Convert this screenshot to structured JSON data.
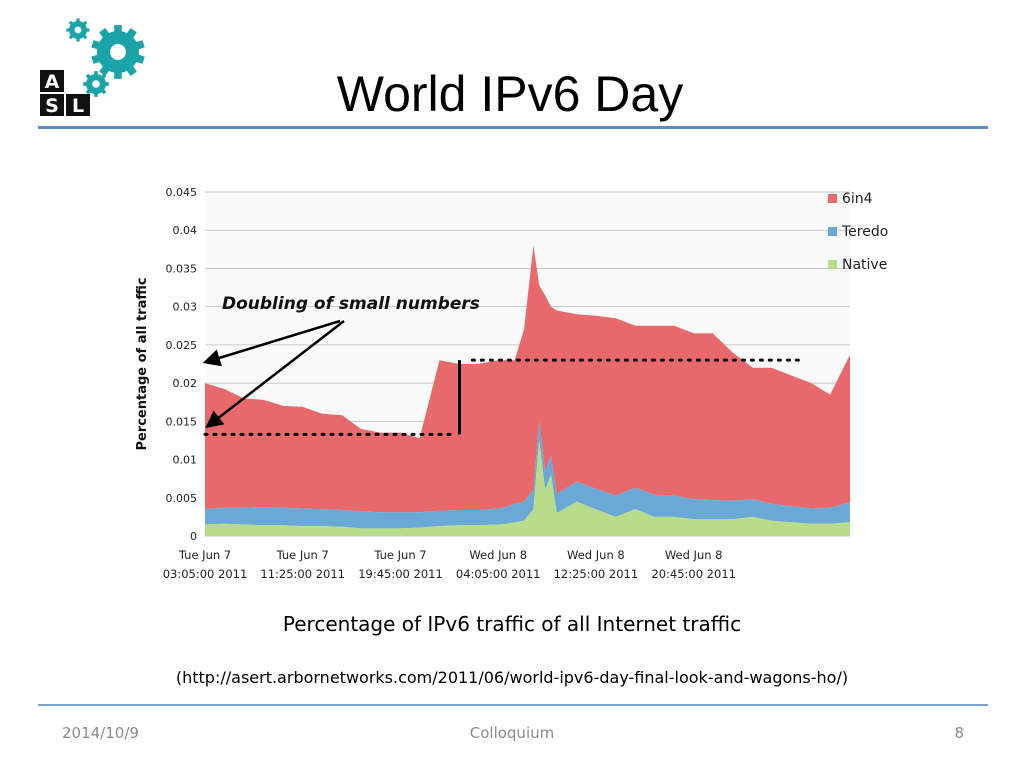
{
  "slide": {
    "title": "World IPv6 Day",
    "caption": "Percentage of IPv6 traffic of all Internet traffic",
    "source": "(http://asert.arbornetworks.com/2011/06/world-ipv6-day-final-look-and-wagons-ho/)"
  },
  "logo": {
    "letters": [
      "A",
      "S",
      "L"
    ],
    "gear_color": "#1aa3a8"
  },
  "footer": {
    "date": "2014/10/9",
    "center": "Colloquium",
    "page": "8"
  },
  "colors": {
    "rule": "#5b8cc7",
    "6in4": "#e8696b",
    "Teredo": "#6aa9d6",
    "Native": "#b9dc8a"
  },
  "chart_data": {
    "type": "area",
    "stacked": true,
    "ylabel": "Percentage of all traffic",
    "ylim": [
      0,
      0.045
    ],
    "yticks": [
      0,
      0.005,
      0.01,
      0.015,
      0.02,
      0.025,
      0.03,
      0.035,
      0.04,
      0.045
    ],
    "ytick_labels": [
      "0",
      "0.005",
      "0.01",
      "0.015",
      "0.02",
      "0.025",
      "0.03",
      "0.035",
      "0.04",
      "0.045"
    ],
    "grid": true,
    "legend_position": "top-right",
    "xtick_labels": [
      {
        "line1": "Tue Jun  7",
        "line2": "03:05:00 2011"
      },
      {
        "line1": "Tue Jun  7",
        "line2": "11:25:00 2011"
      },
      {
        "line1": "Tue Jun  7",
        "line2": "19:45:00 2011"
      },
      {
        "line1": "Wed Jun  8",
        "line2": "04:05:00 2011"
      },
      {
        "line1": "Wed Jun  8",
        "line2": "12:25:00 2011"
      },
      {
        "line1": "Wed Jun  8",
        "line2": "20:45:00 2011"
      }
    ],
    "x_hours": [
      0,
      1.7,
      3.3,
      5,
      6.7,
      8.3,
      10,
      11.7,
      13.3,
      15,
      16.7,
      18.3,
      20,
      21.7,
      23.3,
      25,
      25.7,
      26.4,
      27.2,
      28,
      28.5,
      29,
      29.5,
      30,
      31.7,
      33.3,
      35,
      36.7,
      38.3,
      40,
      41.7,
      43.3,
      45,
      46.7,
      48.3,
      50,
      51.7,
      53.3,
      55
    ],
    "series": [
      {
        "name": "Native",
        "values": [
          0.0015,
          0.0016,
          0.0015,
          0.0014,
          0.0014,
          0.0013,
          0.0013,
          0.0012,
          0.001,
          0.001,
          0.001,
          0.0011,
          0.0013,
          0.0014,
          0.0014,
          0.0015,
          0.0016,
          0.0018,
          0.002,
          0.0035,
          0.0125,
          0.006,
          0.008,
          0.003,
          0.0045,
          0.0035,
          0.0025,
          0.0035,
          0.0025,
          0.0025,
          0.0022,
          0.0022,
          0.0022,
          0.0025,
          0.002,
          0.0018,
          0.0016,
          0.0016,
          0.0018
        ]
      },
      {
        "name": "Teredo",
        "values": [
          0.002,
          0.0021,
          0.0022,
          0.0024,
          0.0023,
          0.0023,
          0.0022,
          0.0022,
          0.0022,
          0.0021,
          0.0021,
          0.002,
          0.002,
          0.002,
          0.002,
          0.0021,
          0.0022,
          0.0024,
          0.0025,
          0.0025,
          0.0025,
          0.0025,
          0.0025,
          0.0025,
          0.0026,
          0.0027,
          0.0028,
          0.0028,
          0.0029,
          0.0028,
          0.0026,
          0.0025,
          0.0024,
          0.0023,
          0.0022,
          0.0021,
          0.002,
          0.0021,
          0.0026
        ]
      },
      {
        "name": "6in4",
        "values": [
          0.0165,
          0.0155,
          0.0143,
          0.014,
          0.0133,
          0.0133,
          0.0125,
          0.0124,
          0.0108,
          0.0104,
          0.0104,
          0.0097,
          0.0197,
          0.0191,
          0.0191,
          0.0194,
          0.0192,
          0.0188,
          0.0225,
          0.032,
          0.0178,
          0.023,
          0.0195,
          0.024,
          0.0219,
          0.0226,
          0.0232,
          0.0212,
          0.0221,
          0.0222,
          0.0217,
          0.0218,
          0.0194,
          0.0172,
          0.0178,
          0.0171,
          0.0164,
          0.0148,
          0.0193
        ]
      }
    ],
    "annotations": [
      {
        "text": "Doubling of small numbers",
        "type": "arrow-label"
      },
      {
        "type": "dotted-line",
        "x_range": [
          0,
          21.2
        ],
        "y": 0.0133
      },
      {
        "type": "dotted-line",
        "x_range": [
          22.8,
          51
        ],
        "y": 0.023
      },
      {
        "type": "vertical-line",
        "x": 21.7,
        "y_range": [
          0.0133,
          0.023
        ]
      }
    ]
  }
}
